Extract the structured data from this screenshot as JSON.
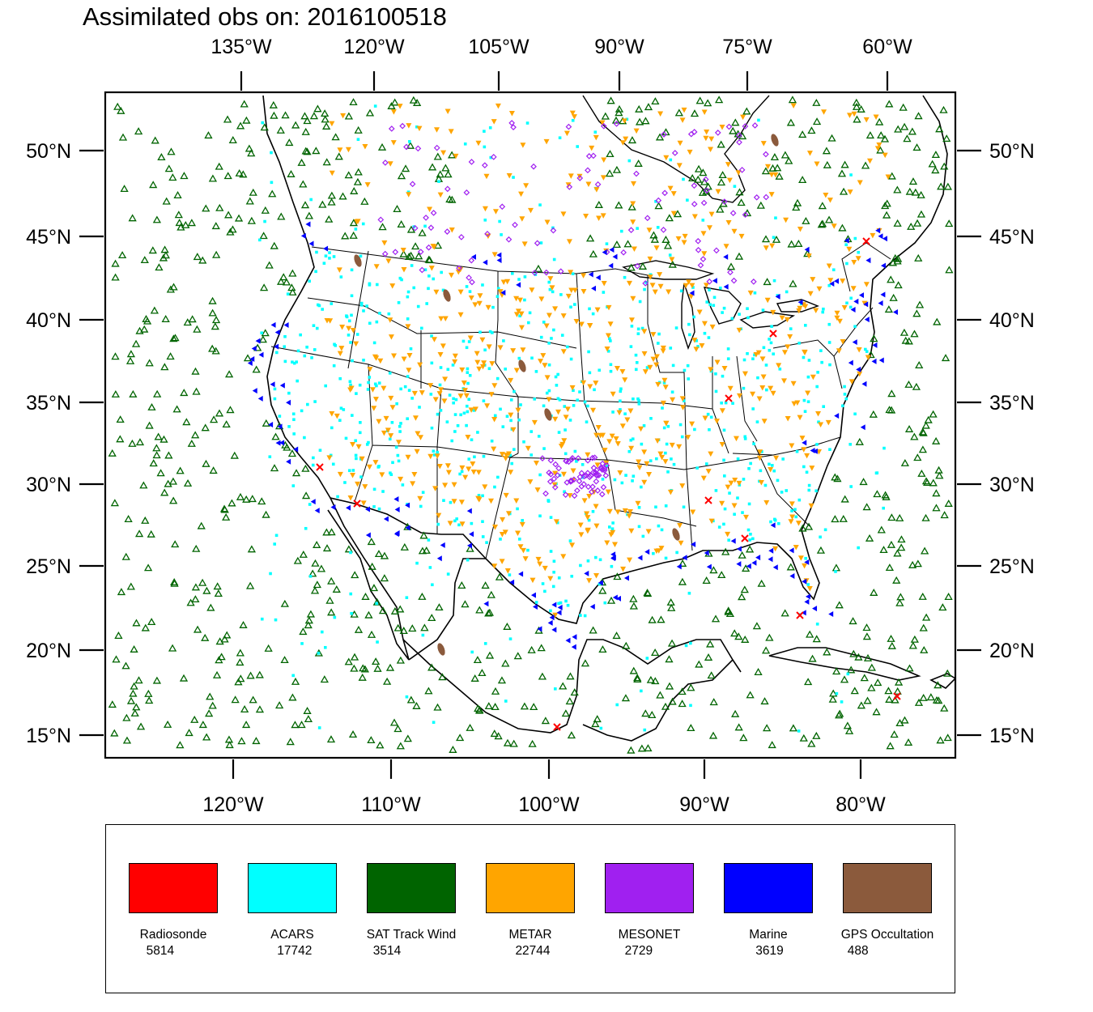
{
  "title": "Assimilated obs on: 2016100518",
  "top_lon_labels": [
    "135°W",
    "120°W",
    "105°W",
    "90°W",
    "75°W",
    "60°W"
  ],
  "bottom_lon_labels": [
    "120°W",
    "110°W",
    "100°W",
    "90°W",
    "80°W"
  ],
  "lat_labels": [
    "50°N",
    "45°N",
    "40°N",
    "35°N",
    "30°N",
    "25°N",
    "20°N",
    "15°N"
  ],
  "legend": [
    {
      "name": "Radiosonde",
      "count": "5814",
      "color": "#ff0000",
      "marker": "x"
    },
    {
      "name": "ACARS",
      "count": "17742",
      "color": "#00ffff",
      "marker": "square"
    },
    {
      "name": "SAT Track Wind",
      "count": "3514",
      "color": "#006400",
      "marker": "triangle-up"
    },
    {
      "name": "METAR",
      "count": "22744",
      "color": "#ffa500",
      "marker": "triangle-down"
    },
    {
      "name": "MESONET",
      "count": "2729",
      "color": "#a020f0",
      "marker": "diamond"
    },
    {
      "name": "Marine",
      "count": "3619",
      "color": "#0000ff",
      "marker": "triangle-left"
    },
    {
      "name": "GPS Occultation",
      "count": "488",
      "color": "#8b5a3c",
      "marker": "ellipse"
    }
  ]
}
